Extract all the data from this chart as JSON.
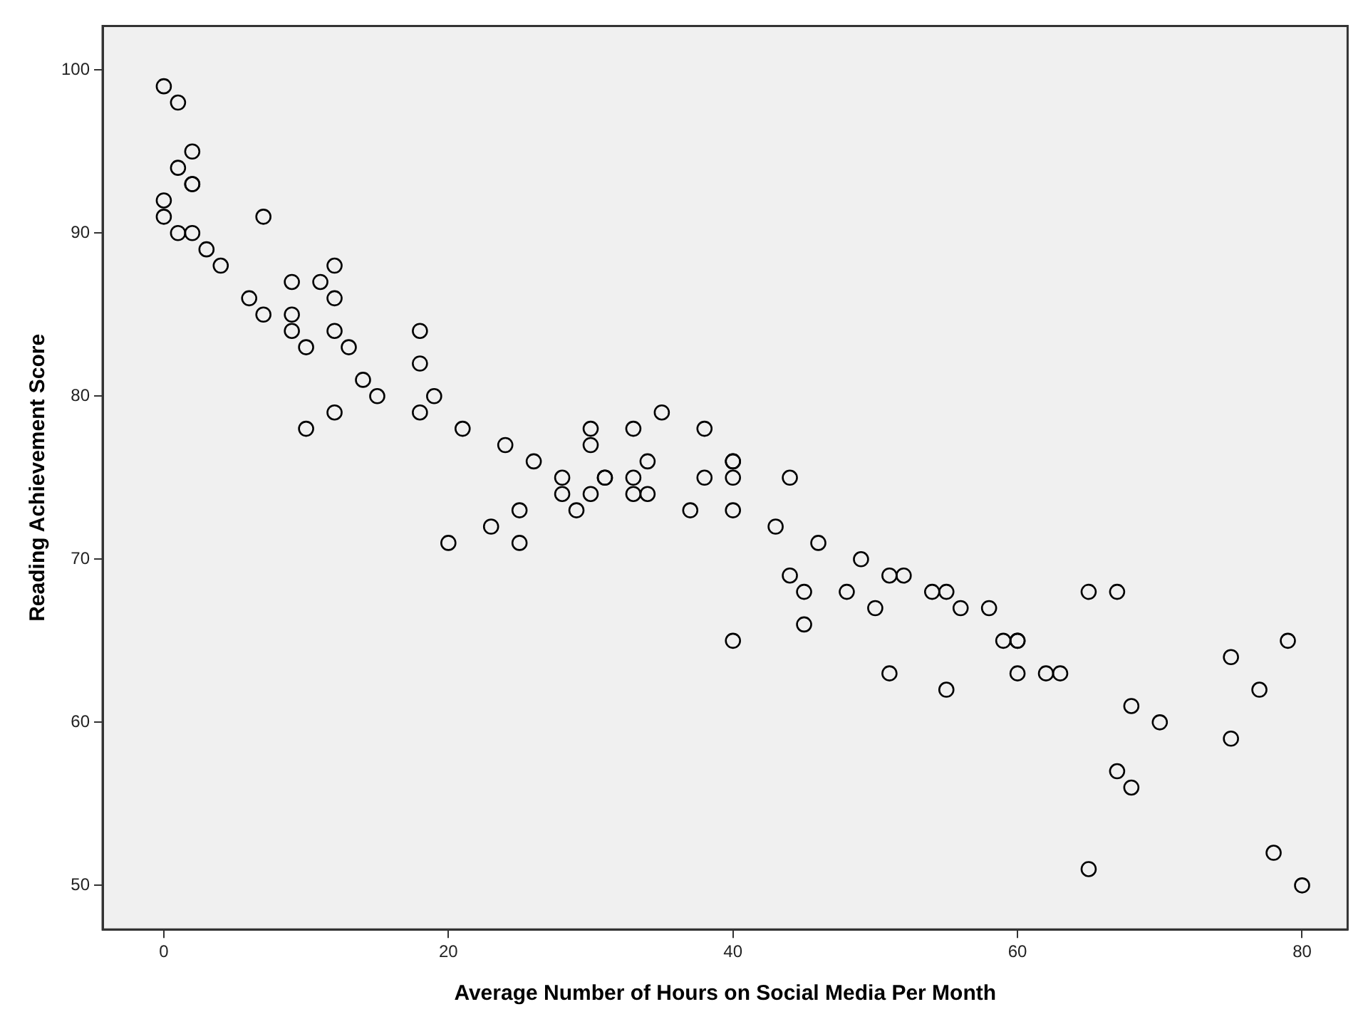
{
  "chart_data": {
    "type": "scatter",
    "xlabel": "Average Number of Hours on Social Media Per Month",
    "ylabel": "Reading Achievement Score",
    "x": [
      0,
      1,
      2,
      1,
      2,
      2,
      0,
      0,
      1,
      2,
      3,
      4,
      7,
      6,
      7,
      9,
      9,
      9,
      10,
      10,
      11,
      12,
      12,
      12,
      12,
      13,
      14,
      15,
      18,
      18,
      18,
      19,
      20,
      21,
      23,
      24,
      25,
      25,
      26,
      28,
      28,
      29,
      30,
      30,
      30,
      31,
      31,
      33,
      33,
      33,
      34,
      34,
      35,
      37,
      38,
      38,
      40,
      40,
      40,
      40,
      40,
      43,
      44,
      44,
      45,
      45,
      46,
      48,
      49,
      50,
      51,
      51,
      52,
      54,
      55,
      55,
      56,
      58,
      59,
      60,
      60,
      60,
      62,
      63,
      65,
      65,
      67,
      67,
      68,
      68,
      70,
      75,
      75,
      77,
      78,
      79,
      80
    ],
    "values": [
      99,
      98,
      95,
      94,
      93,
      93,
      92,
      91,
      90,
      90,
      89,
      88,
      91,
      86,
      85,
      87,
      85,
      84,
      83,
      78,
      87,
      88,
      86,
      84,
      79,
      83,
      81,
      80,
      84,
      82,
      79,
      80,
      71,
      78,
      72,
      77,
      73,
      71,
      76,
      75,
      74,
      73,
      78,
      77,
      74,
      75,
      75,
      78,
      75,
      74,
      76,
      74,
      79,
      73,
      78,
      75,
      76,
      76,
      75,
      73,
      65,
      72,
      75,
      69,
      68,
      66,
      71,
      68,
      70,
      67,
      69,
      63,
      69,
      68,
      68,
      62,
      67,
      67,
      65,
      65,
      65,
      63,
      63,
      63,
      68,
      51,
      68,
      57,
      61,
      56,
      60,
      64,
      59,
      62,
      52,
      65,
      50
    ],
    "color": "#000000",
    "marker": "circle",
    "grid": false,
    "legend": false,
    "xlim": [
      -4.3,
      83.2
    ],
    "xticks": [
      0,
      20,
      40,
      60,
      80
    ],
    "ylim": [
      47.3,
      102.7
    ],
    "yticks": [
      50,
      60,
      70,
      80,
      90,
      100
    ]
  }
}
